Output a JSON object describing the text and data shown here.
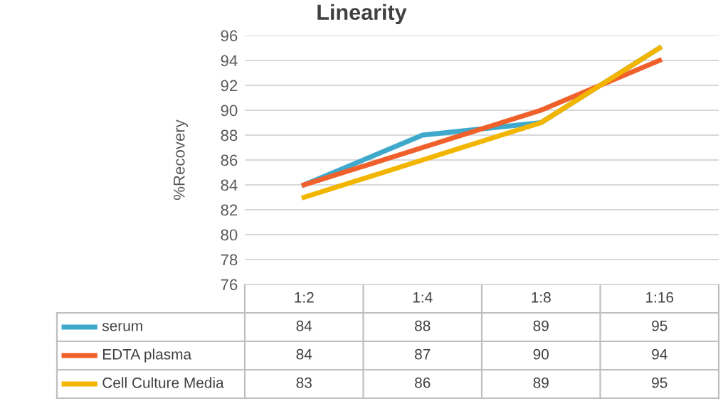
{
  "chart_data": {
    "type": "line",
    "title": "Linearity",
    "ylabel": "%Recovery",
    "categories": [
      "1:2",
      "1:4",
      "1:8",
      "1:16"
    ],
    "series": [
      {
        "name": "serum",
        "color": "#3fa9cc",
        "values": [
          84,
          88,
          89,
          95
        ]
      },
      {
        "name": "EDTA plasma",
        "color": "#f0602a",
        "values": [
          84,
          87,
          90,
          94
        ]
      },
      {
        "name": "Cell Culture Media",
        "color": "#f2b600",
        "values": [
          83,
          86,
          89,
          95
        ]
      }
    ],
    "ylim": [
      76,
      96
    ],
    "yticks": [
      76,
      78,
      80,
      82,
      84,
      86,
      88,
      90,
      92,
      94,
      96
    ],
    "grid": "y",
    "data_labels": true,
    "legend": "bottom left",
    "marker": "none",
    "line_style": "solid"
  }
}
